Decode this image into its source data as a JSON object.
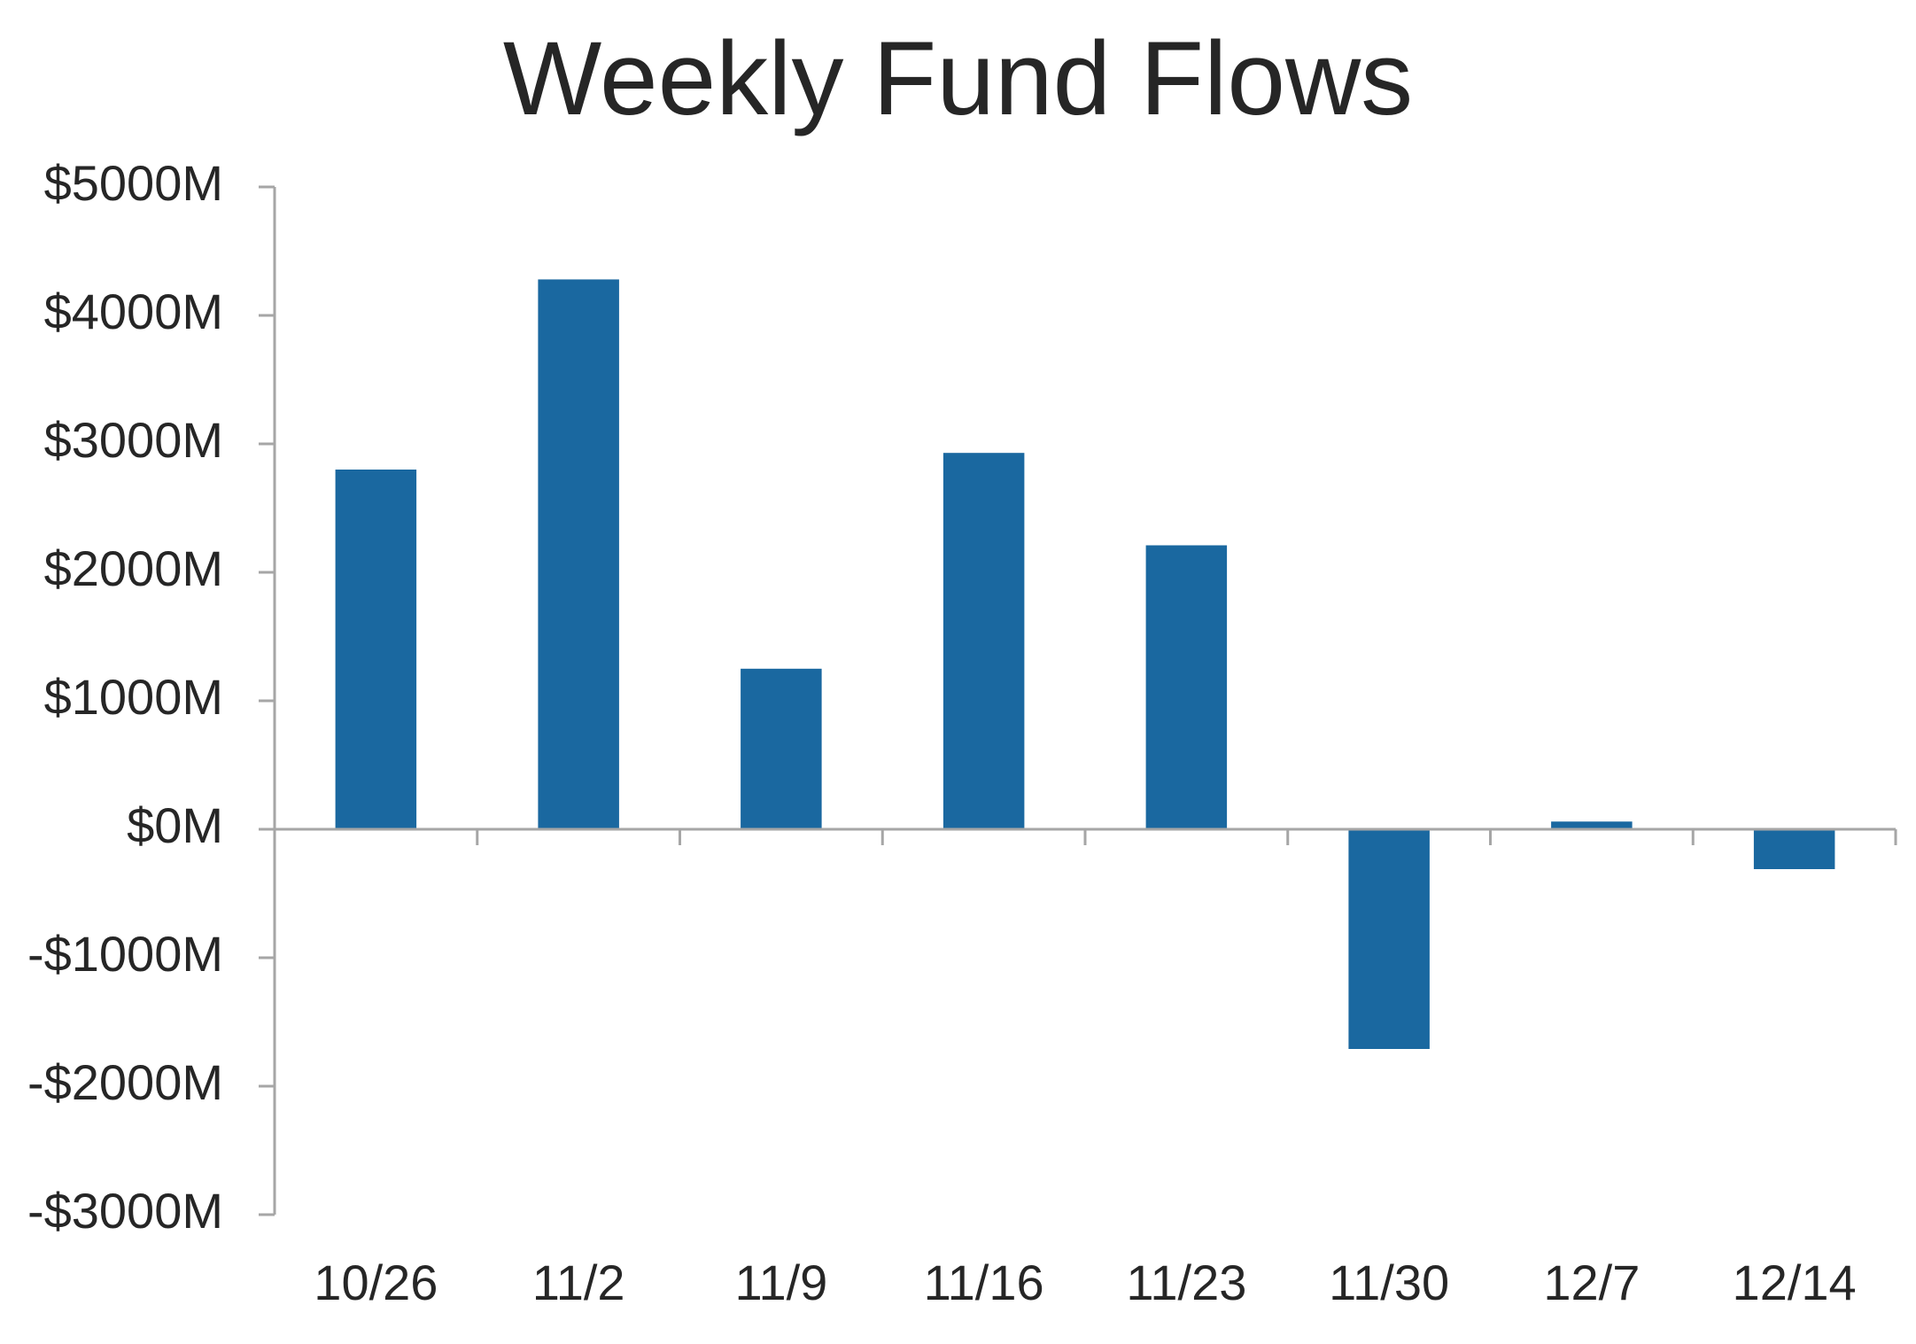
{
  "chart_data": {
    "type": "bar",
    "title": "Weekly Fund Flows",
    "xlabel": "",
    "ylabel": "",
    "categories": [
      "10/26",
      "11/2",
      "11/9",
      "11/16",
      "11/23",
      "11/30",
      "12/7",
      "12/14"
    ],
    "values": [
      2800,
      4280,
      1250,
      2930,
      2210,
      -1710,
      60,
      -310
    ],
    "ylim": [
      -3000,
      5000
    ],
    "yticks": [
      5000,
      4000,
      3000,
      2000,
      1000,
      0,
      -1000,
      -2000,
      -3000
    ],
    "ytick_labels": [
      "$5000M",
      "$4000M",
      "$3000M",
      "$2000M",
      "$1000M",
      "$0M",
      "-$1000M",
      "-$2000M",
      "-$3000M"
    ],
    "grid": false,
    "legend": "none",
    "bar_color": "#1a68a0",
    "axis_color": "#a6a6a6",
    "text_color": "#262626"
  }
}
